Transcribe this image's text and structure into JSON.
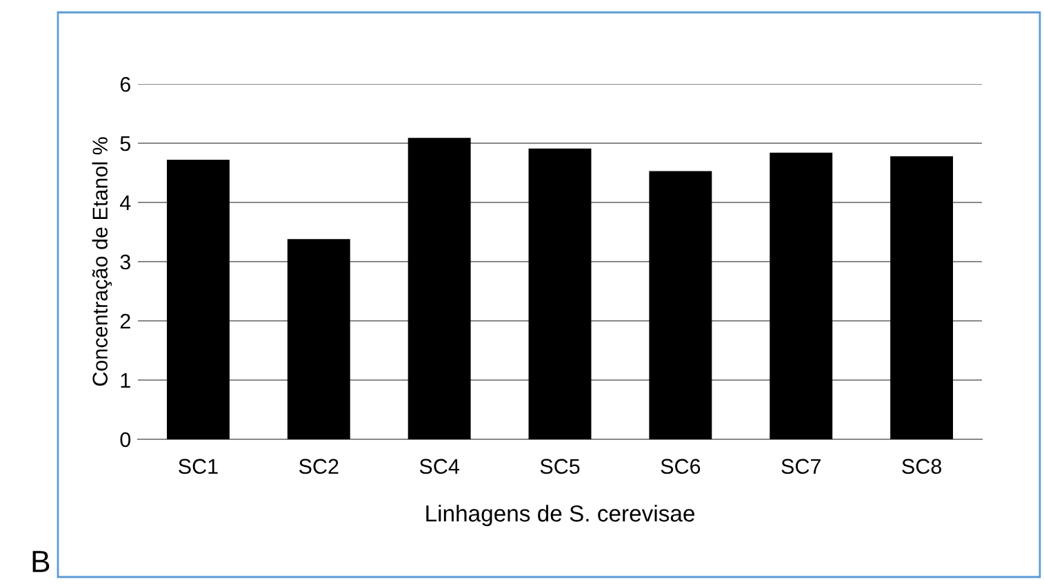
{
  "chart_data": {
    "type": "bar",
    "categories": [
      "SC1",
      "SC2",
      "SC4",
      "SC5",
      "SC6",
      "SC7",
      "SC8"
    ],
    "values": [
      4.72,
      3.38,
      5.09,
      4.91,
      4.53,
      4.84,
      4.78
    ],
    "color": "#000000",
    "ylabel": "Concentração de Etanol %",
    "xlabel": "Linhagens de S. cerevisae",
    "ylim": [
      0,
      6
    ],
    "yticks": [
      0,
      1,
      2,
      3,
      4,
      5,
      6
    ],
    "grid": "y",
    "legend": false,
    "annotations": [
      "B"
    ]
  }
}
